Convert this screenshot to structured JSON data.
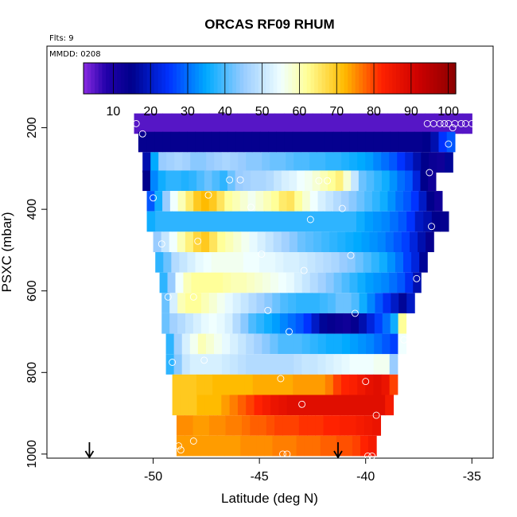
{
  "chart_data": {
    "type": "heatmap",
    "title": "ORCAS RF09 RHUM",
    "flights_note": "Flts: 9",
    "date_note": "MMDD: 0208",
    "xlabel": "Latitude (deg N)",
    "ylabel": "PSXC (mbar)",
    "xlim": [
      -55,
      -34
    ],
    "ylim": [
      1010,
      0
    ],
    "x_ticks": [
      -50,
      -45,
      -40,
      -35
    ],
    "y_ticks": [
      200,
      400,
      600,
      800,
      1000
    ],
    "colorbar": {
      "range": [
        2,
        102
      ],
      "ticks": [
        10,
        20,
        30,
        40,
        50,
        60,
        70,
        80,
        90,
        100
      ],
      "stops": [
        {
          "v": 2,
          "c": "#8a2be2"
        },
        {
          "v": 8,
          "c": "#2200aa"
        },
        {
          "v": 15,
          "c": "#00008b"
        },
        {
          "v": 25,
          "c": "#0033ff"
        },
        {
          "v": 35,
          "c": "#00aaff"
        },
        {
          "v": 45,
          "c": "#99ccff"
        },
        {
          "v": 55,
          "c": "#f0ffff"
        },
        {
          "v": 62,
          "c": "#ffff99"
        },
        {
          "v": 72,
          "c": "#ffbb00"
        },
        {
          "v": 82,
          "c": "#ff2200"
        },
        {
          "v": 92,
          "c": "#cc0000"
        },
        {
          "v": 102,
          "c": "#8b0000"
        }
      ]
    },
    "layers": [
      {
        "p": 190,
        "lat0": -50.9,
        "lat1": -35.0,
        "v": [
          5,
          5,
          5,
          5,
          5,
          5,
          5,
          5,
          5,
          5,
          5,
          5,
          5,
          5,
          5,
          5,
          5,
          5,
          5,
          5,
          5,
          5,
          5,
          5,
          5,
          5,
          5,
          5,
          5,
          5,
          5,
          5,
          5,
          5,
          5,
          5
        ]
      },
      {
        "p": 235,
        "lat0": -50.7,
        "lat1": -35.8,
        "v": [
          14,
          14,
          14,
          14,
          14,
          14,
          14,
          14,
          14,
          14,
          14,
          14,
          14,
          14,
          14,
          14,
          14,
          14,
          14,
          14,
          14,
          14,
          14,
          14,
          14,
          14,
          14,
          14,
          14,
          14,
          14,
          14,
          14,
          14,
          14,
          15,
          18,
          25,
          28
        ]
      },
      {
        "p": 285,
        "lat0": -50.5,
        "lat1": -35.9,
        "v": [
          18,
          35,
          45,
          46,
          47,
          46,
          44,
          44,
          45,
          46,
          47,
          46,
          45,
          44,
          44,
          43,
          42,
          42,
          41,
          40,
          40,
          39,
          39,
          38,
          38,
          37,
          36,
          35,
          34,
          32,
          30,
          28,
          25,
          22,
          18,
          15,
          13,
          12,
          16
        ]
      },
      {
        "p": 330,
        "lat0": -50.5,
        "lat1": -36.7,
        "v": [
          15,
          32,
          36,
          38,
          38,
          37,
          38,
          40,
          42,
          40,
          38,
          42,
          45,
          46,
          47,
          47,
          48,
          50,
          52,
          53,
          55,
          56,
          58,
          60,
          62,
          64,
          58,
          50,
          42,
          40,
          38,
          36,
          33,
          30,
          28,
          22,
          15,
          12
        ]
      },
      {
        "p": 380,
        "lat0": -50.3,
        "lat1": -36.4,
        "v": [
          28,
          36,
          45,
          55,
          60,
          65,
          70,
          72,
          70,
          66,
          62,
          60,
          58,
          56,
          58,
          60,
          62,
          65,
          66,
          62,
          58,
          55,
          52,
          50,
          48,
          46,
          44,
          42,
          40,
          38,
          36,
          33,
          30,
          28,
          25,
          20,
          15,
          12
        ]
      },
      {
        "p": 430,
        "lat0": -50.3,
        "lat1": -36.1,
        "v": [
          36,
          38,
          38,
          38,
          38,
          38,
          38,
          38,
          38,
          38,
          38,
          38,
          38,
          38,
          38,
          38,
          38,
          38,
          38,
          38,
          38,
          38,
          38,
          38,
          38,
          36,
          34,
          33,
          32,
          30,
          28,
          25,
          20,
          18,
          15,
          14
        ]
      },
      {
        "p": 480,
        "lat0": -50.0,
        "lat1": -36.8,
        "v": [
          45,
          50,
          55,
          60,
          64,
          68,
          70,
          66,
          62,
          60,
          58,
          56,
          54,
          52,
          50,
          48,
          46,
          44,
          42,
          41,
          40,
          39,
          38,
          37,
          36,
          35,
          34,
          33,
          32,
          30,
          28,
          26,
          22,
          18,
          14
        ]
      },
      {
        "p": 530,
        "lat0": -49.9,
        "lat1": -37.1,
        "v": [
          38,
          42,
          48,
          50,
          52,
          54,
          55,
          56,
          56,
          56,
          56,
          55,
          55,
          54,
          54,
          53,
          52,
          52,
          51,
          50,
          49,
          48,
          47,
          45,
          44,
          42,
          40,
          38,
          36,
          33,
          30,
          26,
          22,
          16
        ]
      },
      {
        "p": 580,
        "lat0": -49.7,
        "lat1": -37.4,
        "v": [
          38,
          45,
          55,
          60,
          62,
          62,
          62,
          62,
          61,
          60,
          60,
          59,
          58,
          57,
          56,
          55,
          54,
          52,
          50,
          48,
          46,
          44,
          42,
          40,
          38,
          36,
          34,
          33,
          32,
          30,
          28,
          24,
          18
        ]
      },
      {
        "p": 630,
        "lat0": -49.6,
        "lat1": -37.7,
        "v": [
          42,
          52,
          60,
          62,
          62,
          60,
          58,
          56,
          54,
          52,
          50,
          48,
          46,
          44,
          42,
          40,
          39,
          38,
          38,
          38,
          39,
          40,
          42,
          42,
          40,
          36,
          32,
          28,
          24,
          20,
          16,
          20
        ]
      },
      {
        "p": 680,
        "lat0": -49.6,
        "lat1": -38.1,
        "v": [
          42,
          46,
          48,
          50,
          52,
          54,
          55,
          54,
          52,
          48,
          44,
          40,
          38,
          36,
          34,
          32,
          30,
          28,
          25,
          20,
          16,
          14,
          13,
          12,
          14,
          18,
          22,
          26,
          30,
          36,
          62
        ]
      },
      {
        "p": 730,
        "lat0": -49.4,
        "lat1": -38.1,
        "v": [
          38,
          46,
          52,
          56,
          60,
          58,
          56,
          54,
          52,
          50,
          48,
          46,
          44,
          42,
          40,
          40,
          40,
          39,
          38,
          37,
          36,
          36,
          35,
          34,
          33,
          32,
          30,
          28,
          26,
          55
        ]
      },
      {
        "p": 780,
        "lat0": -49.4,
        "lat1": -38.5,
        "v": [
          38,
          44,
          50,
          52,
          52,
          52,
          52,
          51,
          50,
          49,
          48,
          48,
          48,
          48,
          48,
          48,
          49,
          50,
          50,
          51,
          52,
          53,
          54,
          55,
          55,
          55,
          56,
          56,
          45
        ]
      },
      {
        "p": 830,
        "lat0": -49.1,
        "lat1": -38.5,
        "v": [
          70,
          70,
          70,
          71,
          71,
          72,
          72,
          72,
          72,
          72,
          73,
          73,
          73,
          73,
          73,
          74,
          74,
          74,
          74,
          76,
          80,
          82,
          83,
          85,
          87,
          88,
          86,
          80
        ]
      },
      {
        "p": 880,
        "lat0": -49.1,
        "lat1": -38.7,
        "v": [
          70,
          70,
          70,
          72,
          72,
          72,
          74,
          76,
          78,
          80,
          82,
          84,
          86,
          87,
          88,
          88,
          88,
          88,
          88,
          88,
          88,
          88,
          88,
          88,
          88,
          88,
          84
        ]
      },
      {
        "p": 930,
        "lat0": -48.9,
        "lat1": -39.3,
        "v": [
          75,
          75,
          74,
          74,
          75,
          75,
          76,
          76,
          77,
          78,
          78,
          79,
          80,
          80,
          80,
          81,
          81,
          81,
          82,
          82,
          83,
          83,
          84,
          85,
          86
        ]
      },
      {
        "p": 980,
        "lat0": -48.9,
        "lat1": -39.5,
        "v": [
          74,
          74,
          74,
          74,
          74,
          74,
          74,
          74,
          75,
          75,
          75,
          75,
          76,
          76,
          76,
          77,
          77,
          77,
          78,
          78,
          79,
          79,
          80,
          82,
          84
        ]
      }
    ],
    "markers": [
      {
        "lat": -50.8,
        "p": 190
      },
      {
        "lat": -37.1,
        "p": 190
      },
      {
        "lat": -36.8,
        "p": 190
      },
      {
        "lat": -36.5,
        "p": 190
      },
      {
        "lat": -36.1,
        "p": 190
      },
      {
        "lat": -35.8,
        "p": 190
      },
      {
        "lat": -35.5,
        "p": 190
      },
      {
        "lat": -35.3,
        "p": 190
      },
      {
        "lat": -35.0,
        "p": 190
      },
      {
        "lat": -36.3,
        "p": 190
      },
      {
        "lat": -35.9,
        "p": 200
      },
      {
        "lat": -50.5,
        "p": 215
      },
      {
        "lat": -36.1,
        "p": 240
      },
      {
        "lat": -37.0,
        "p": 310
      },
      {
        "lat": -46.4,
        "p": 328
      },
      {
        "lat": -45.9,
        "p": 328
      },
      {
        "lat": -42.2,
        "p": 330
      },
      {
        "lat": -41.8,
        "p": 330
      },
      {
        "lat": -47.4,
        "p": 365
      },
      {
        "lat": -50.0,
        "p": 372
      },
      {
        "lat": -45.4,
        "p": 395
      },
      {
        "lat": -41.1,
        "p": 398
      },
      {
        "lat": -42.6,
        "p": 425
      },
      {
        "lat": -36.9,
        "p": 442
      },
      {
        "lat": -47.9,
        "p": 478
      },
      {
        "lat": -49.6,
        "p": 485
      },
      {
        "lat": -44.9,
        "p": 510
      },
      {
        "lat": -40.7,
        "p": 513
      },
      {
        "lat": -42.9,
        "p": 550
      },
      {
        "lat": -37.6,
        "p": 570
      },
      {
        "lat": -48.1,
        "p": 615
      },
      {
        "lat": -49.3,
        "p": 615
      },
      {
        "lat": -44.6,
        "p": 648
      },
      {
        "lat": -40.5,
        "p": 655
      },
      {
        "lat": -43.6,
        "p": 700
      },
      {
        "lat": -38.2,
        "p": 720
      },
      {
        "lat": -49.1,
        "p": 775
      },
      {
        "lat": -47.6,
        "p": 770
      },
      {
        "lat": -44.0,
        "p": 815
      },
      {
        "lat": -40.0,
        "p": 822
      },
      {
        "lat": -43.0,
        "p": 878
      },
      {
        "lat": -39.5,
        "p": 905
      },
      {
        "lat": -48.1,
        "p": 968
      },
      {
        "lat": -48.8,
        "p": 980
      },
      {
        "lat": -48.7,
        "p": 990
      },
      {
        "lat": -43.9,
        "p": 1000
      },
      {
        "lat": -43.7,
        "p": 1000
      },
      {
        "lat": -39.7,
        "p": 1005
      },
      {
        "lat": -39.9,
        "p": 1005
      }
    ],
    "arrows": [
      {
        "lat": -53.0
      },
      {
        "lat": -41.3
      }
    ]
  }
}
